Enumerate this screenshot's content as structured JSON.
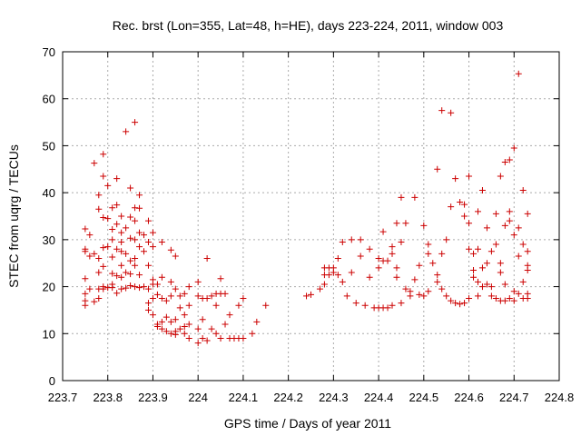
{
  "chart_data": {
    "type": "scatter",
    "title": "Rec. brst (Lon=355, Lat=48, h=HE), days 223-224, 2011, window 003",
    "xlabel": "GPS time / Days of year 2011",
    "ylabel": "STEC from uqrg / TECUs",
    "xlim": [
      223.7,
      224.8
    ],
    "ylim": [
      0,
      70
    ],
    "x_ticks": [
      223.7,
      223.8,
      223.9,
      224.0,
      224.1,
      224.2,
      224.3,
      224.4,
      224.5,
      224.6,
      224.7,
      224.8
    ],
    "x_tick_labels": [
      "223.7",
      "223.8",
      "223.9",
      "224",
      "224.1",
      "224.2",
      "224.3",
      "224.4",
      "224.5",
      "224.6",
      "224.7",
      "224.8"
    ],
    "y_ticks": [
      0,
      10,
      20,
      30,
      40,
      50,
      60,
      70
    ],
    "y_tick_labels": [
      "0",
      "10",
      "20",
      "30",
      "40",
      "50",
      "60",
      "70"
    ],
    "grid": true,
    "marker": "plus",
    "color": "#cc0000",
    "points": [
      [
        223.75,
        32.3
      ],
      [
        223.75,
        28
      ],
      [
        223.75,
        27.5
      ],
      [
        223.75,
        21.7
      ],
      [
        223.75,
        18.5
      ],
      [
        223.75,
        17
      ],
      [
        223.75,
        16
      ],
      [
        223.76,
        31
      ],
      [
        223.76,
        26.5
      ],
      [
        223.76,
        19.5
      ],
      [
        223.77,
        46.3
      ],
      [
        223.77,
        27
      ],
      [
        223.77,
        16.8
      ],
      [
        223.78,
        39.5
      ],
      [
        223.78,
        36.5
      ],
      [
        223.78,
        26
      ],
      [
        223.78,
        23
      ],
      [
        223.78,
        19.5
      ],
      [
        223.78,
        17.5
      ],
      [
        223.79,
        48.2
      ],
      [
        223.79,
        43.5
      ],
      [
        223.79,
        34.7
      ],
      [
        223.79,
        28.3
      ],
      [
        223.79,
        24.3
      ],
      [
        223.79,
        20
      ],
      [
        223.79,
        19.5
      ],
      [
        223.8,
        41.5
      ],
      [
        223.8,
        34.5
      ],
      [
        223.8,
        28.5
      ],
      [
        223.8,
        19.8
      ],
      [
        223.81,
        36.8
      ],
      [
        223.81,
        32.2
      ],
      [
        223.81,
        30
      ],
      [
        223.81,
        26.3
      ],
      [
        223.81,
        22.8
      ],
      [
        223.81,
        20.5
      ],
      [
        223.81,
        19.8
      ],
      [
        223.82,
        43
      ],
      [
        223.82,
        37.4
      ],
      [
        223.82,
        33.3
      ],
      [
        223.82,
        28
      ],
      [
        223.82,
        22.3
      ],
      [
        223.82,
        18.6
      ],
      [
        223.83,
        35
      ],
      [
        223.83,
        31.5
      ],
      [
        223.83,
        29.5
      ],
      [
        223.83,
        27.5
      ],
      [
        223.83,
        24.5
      ],
      [
        223.83,
        22
      ],
      [
        223.83,
        19.5
      ],
      [
        223.84,
        53
      ],
      [
        223.84,
        32.5
      ],
      [
        223.84,
        27
      ],
      [
        223.84,
        23
      ],
      [
        223.84,
        19.7
      ],
      [
        223.85,
        41
      ],
      [
        223.85,
        34.8
      ],
      [
        223.85,
        30.3
      ],
      [
        223.85,
        25.5
      ],
      [
        223.85,
        22.7
      ],
      [
        223.85,
        20.2
      ],
      [
        223.86,
        55
      ],
      [
        223.86,
        36.8
      ],
      [
        223.86,
        34
      ],
      [
        223.86,
        30
      ],
      [
        223.86,
        26
      ],
      [
        223.86,
        24.5
      ],
      [
        223.86,
        20
      ],
      [
        223.87,
        39.5
      ],
      [
        223.87,
        36.7
      ],
      [
        223.87,
        31.5
      ],
      [
        223.87,
        28.5
      ],
      [
        223.87,
        22.5
      ],
      [
        223.87,
        19.8
      ],
      [
        223.88,
        31
      ],
      [
        223.88,
        27.5
      ],
      [
        223.88,
        20
      ],
      [
        223.89,
        34
      ],
      [
        223.89,
        29.5
      ],
      [
        223.89,
        24.5
      ],
      [
        223.89,
        19.5
      ],
      [
        223.89,
        16.5
      ],
      [
        223.89,
        15
      ],
      [
        223.9,
        31.5
      ],
      [
        223.9,
        28.5
      ],
      [
        223.9,
        21.5
      ],
      [
        223.9,
        20.5
      ],
      [
        223.9,
        17.5
      ],
      [
        223.9,
        14
      ],
      [
        223.91,
        20.5
      ],
      [
        223.91,
        18.3
      ],
      [
        223.91,
        12
      ],
      [
        223.91,
        11.5
      ],
      [
        223.92,
        29.5
      ],
      [
        223.92,
        22
      ],
      [
        223.92,
        17.5
      ],
      [
        223.92,
        12.5
      ],
      [
        223.92,
        11
      ],
      [
        223.93,
        17
      ],
      [
        223.93,
        13.5
      ],
      [
        223.93,
        10.5
      ],
      [
        223.94,
        27.8
      ],
      [
        223.94,
        21
      ],
      [
        223.94,
        18
      ],
      [
        223.94,
        12.5
      ],
      [
        223.94,
        10
      ],
      [
        223.95,
        26.5
      ],
      [
        223.95,
        19.5
      ],
      [
        223.95,
        13
      ],
      [
        223.95,
        10.5
      ],
      [
        223.95,
        9.8
      ],
      [
        223.96,
        18
      ],
      [
        223.96,
        15.5
      ],
      [
        223.96,
        11
      ],
      [
        223.97,
        18.5
      ],
      [
        223.97,
        14
      ],
      [
        223.97,
        11.5
      ],
      [
        223.97,
        10
      ],
      [
        223.98,
        20
      ],
      [
        223.98,
        16
      ],
      [
        223.98,
        12
      ],
      [
        223.98,
        9
      ],
      [
        224.0,
        21
      ],
      [
        224.0,
        18
      ],
      [
        224.0,
        11
      ],
      [
        224.0,
        8
      ],
      [
        224.01,
        17.5
      ],
      [
        224.01,
        13
      ],
      [
        224.01,
        9
      ],
      [
        224.02,
        26
      ],
      [
        224.02,
        17.5
      ],
      [
        224.02,
        8.5
      ],
      [
        224.03,
        18
      ],
      [
        224.03,
        11
      ],
      [
        224.04,
        18.5
      ],
      [
        224.04,
        16
      ],
      [
        224.04,
        10
      ],
      [
        224.05,
        21.7
      ],
      [
        224.05,
        18.5
      ],
      [
        224.05,
        9
      ],
      [
        224.06,
        18.5
      ],
      [
        224.06,
        12
      ],
      [
        224.07,
        14
      ],
      [
        224.07,
        9
      ],
      [
        224.08,
        9
      ],
      [
        224.09,
        16
      ],
      [
        224.09,
        9
      ],
      [
        224.1,
        17.5
      ],
      [
        224.1,
        9
      ],
      [
        224.12,
        10
      ],
      [
        224.13,
        12.5
      ],
      [
        224.15,
        16
      ],
      [
        224.24,
        18
      ],
      [
        224.25,
        18.3
      ],
      [
        224.27,
        19.5
      ],
      [
        224.28,
        24
      ],
      [
        224.28,
        22.5
      ],
      [
        224.28,
        20.5
      ],
      [
        224.29,
        24
      ],
      [
        224.29,
        22.5
      ],
      [
        224.3,
        24
      ],
      [
        224.3,
        23
      ],
      [
        224.31,
        26
      ],
      [
        224.31,
        22.5
      ],
      [
        224.32,
        29.5
      ],
      [
        224.32,
        21
      ],
      [
        224.33,
        18
      ],
      [
        224.34,
        30
      ],
      [
        224.34,
        23
      ],
      [
        224.35,
        16.5
      ],
      [
        224.36,
        30
      ],
      [
        224.36,
        26.5
      ],
      [
        224.37,
        16
      ],
      [
        224.38,
        28
      ],
      [
        224.38,
        22
      ],
      [
        224.39,
        15.5
      ],
      [
        224.4,
        26
      ],
      [
        224.4,
        24
      ],
      [
        224.4,
        15.5
      ],
      [
        224.41,
        31.7
      ],
      [
        224.41,
        25.5
      ],
      [
        224.41,
        15.5
      ],
      [
        224.42,
        25.5
      ],
      [
        224.42,
        15.5
      ],
      [
        224.43,
        28.5
      ],
      [
        224.43,
        27
      ],
      [
        224.43,
        16
      ],
      [
        224.44,
        33.5
      ],
      [
        224.44,
        24
      ],
      [
        224.44,
        22
      ],
      [
        224.45,
        39
      ],
      [
        224.45,
        29.5
      ],
      [
        224.45,
        16.5
      ],
      [
        224.46,
        33.5
      ],
      [
        224.46,
        19.5
      ],
      [
        224.47,
        19
      ],
      [
        224.47,
        18
      ],
      [
        224.48,
        39
      ],
      [
        224.48,
        21.5
      ],
      [
        224.49,
        24.5
      ],
      [
        224.49,
        18.3
      ],
      [
        224.5,
        33
      ],
      [
        224.5,
        18
      ],
      [
        224.51,
        29
      ],
      [
        224.51,
        27
      ],
      [
        224.51,
        19
      ],
      [
        224.52,
        25
      ],
      [
        224.53,
        45
      ],
      [
        224.53,
        22.5
      ],
      [
        224.53,
        21
      ],
      [
        224.54,
        57.5
      ],
      [
        224.54,
        27
      ],
      [
        224.54,
        19.5
      ],
      [
        224.55,
        30
      ],
      [
        224.55,
        18
      ],
      [
        224.56,
        57
      ],
      [
        224.56,
        37
      ],
      [
        224.56,
        17
      ],
      [
        224.57,
        43
      ],
      [
        224.57,
        16.5
      ],
      [
        224.58,
        38
      ],
      [
        224.58,
        16.3
      ],
      [
        224.59,
        37.5
      ],
      [
        224.59,
        35
      ],
      [
        224.59,
        16.5
      ],
      [
        224.6,
        43.5
      ],
      [
        224.6,
        33.5
      ],
      [
        224.6,
        28
      ],
      [
        224.6,
        17.5
      ],
      [
        224.61,
        27
      ],
      [
        224.61,
        23.5
      ],
      [
        224.61,
        22
      ],
      [
        224.62,
        36
      ],
      [
        224.62,
        28
      ],
      [
        224.62,
        21
      ],
      [
        224.62,
        18
      ],
      [
        224.63,
        40.5
      ],
      [
        224.63,
        24
      ],
      [
        224.63,
        20
      ],
      [
        224.64,
        32.5
      ],
      [
        224.64,
        25
      ],
      [
        224.64,
        20.5
      ],
      [
        224.65,
        27.5
      ],
      [
        224.65,
        20
      ],
      [
        224.65,
        18
      ],
      [
        224.66,
        35.5
      ],
      [
        224.66,
        29
      ],
      [
        224.66,
        17.5
      ],
      [
        224.67,
        43.5
      ],
      [
        224.67,
        25
      ],
      [
        224.67,
        23
      ],
      [
        224.67,
        17
      ],
      [
        224.68,
        46.5
      ],
      [
        224.68,
        33
      ],
      [
        224.68,
        20.5
      ],
      [
        224.68,
        17
      ],
      [
        224.69,
        47
      ],
      [
        224.69,
        36
      ],
      [
        224.69,
        34
      ],
      [
        224.69,
        17.5
      ],
      [
        224.7,
        49.5
      ],
      [
        224.7,
        31
      ],
      [
        224.7,
        19
      ],
      [
        224.7,
        17
      ],
      [
        224.71,
        65.3
      ],
      [
        224.71,
        32.5
      ],
      [
        224.71,
        26.5
      ],
      [
        224.71,
        18.5
      ],
      [
        224.72,
        40.5
      ],
      [
        224.72,
        29
      ],
      [
        224.72,
        21
      ],
      [
        224.72,
        17.5
      ],
      [
        224.73,
        35.5
      ],
      [
        224.73,
        27.5
      ],
      [
        224.73,
        24.5
      ],
      [
        224.73,
        23.5
      ],
      [
        224.73,
        18.5
      ],
      [
        224.73,
        17.5
      ]
    ]
  }
}
